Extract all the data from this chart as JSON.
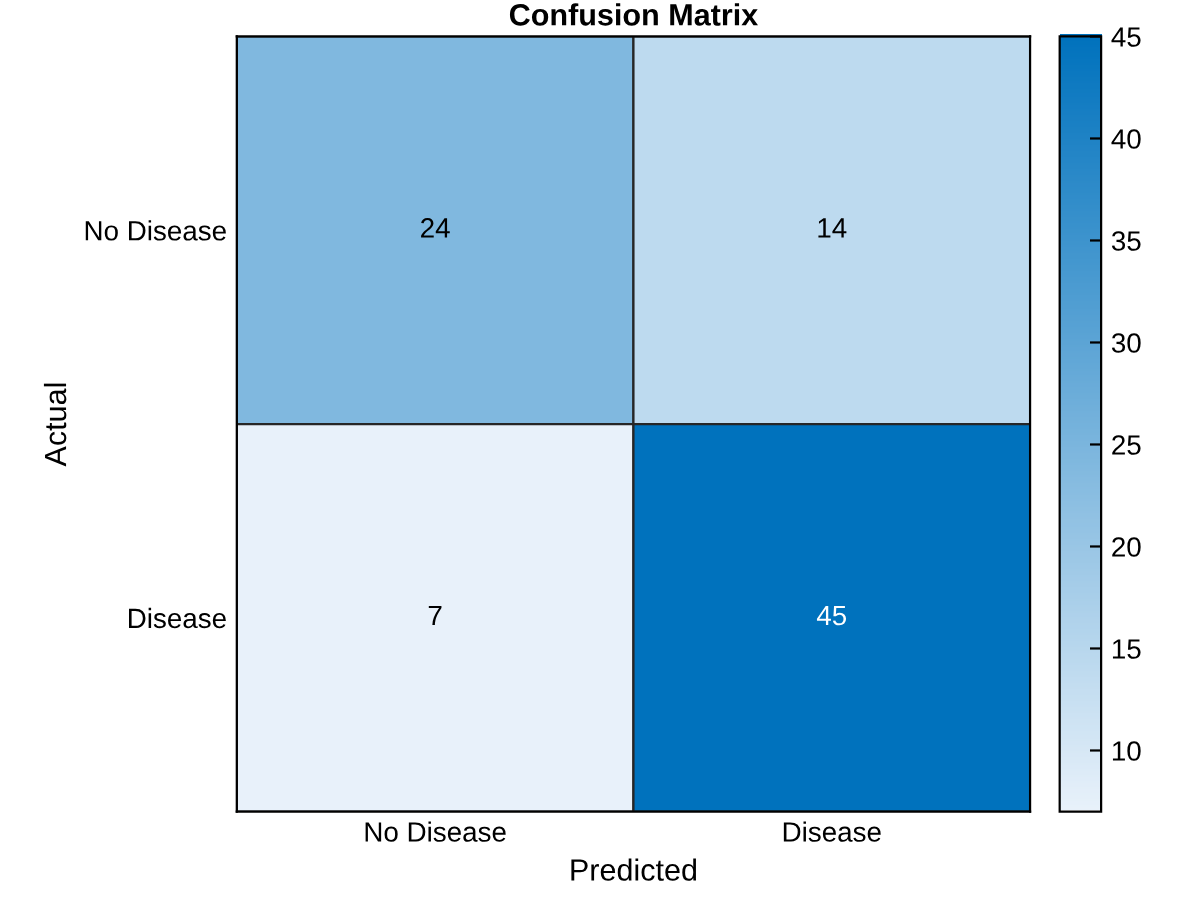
{
  "chart_data": {
    "type": "heatmap",
    "title": "Confusion Matrix",
    "xlabel": "Predicted",
    "ylabel": "Actual",
    "categories": [
      "No Disease",
      "Disease"
    ],
    "y_categories": [
      "No Disease",
      "Disease"
    ],
    "cells": [
      [
        24,
        14
      ],
      [
        7,
        45
      ]
    ],
    "clim": [
      7,
      45
    ],
    "cticks": [
      10,
      15,
      20,
      25,
      30,
      35,
      40,
      45
    ],
    "colors": [
      "#e8f1fa",
      "#0072bd"
    ],
    "data_labels": true
  }
}
